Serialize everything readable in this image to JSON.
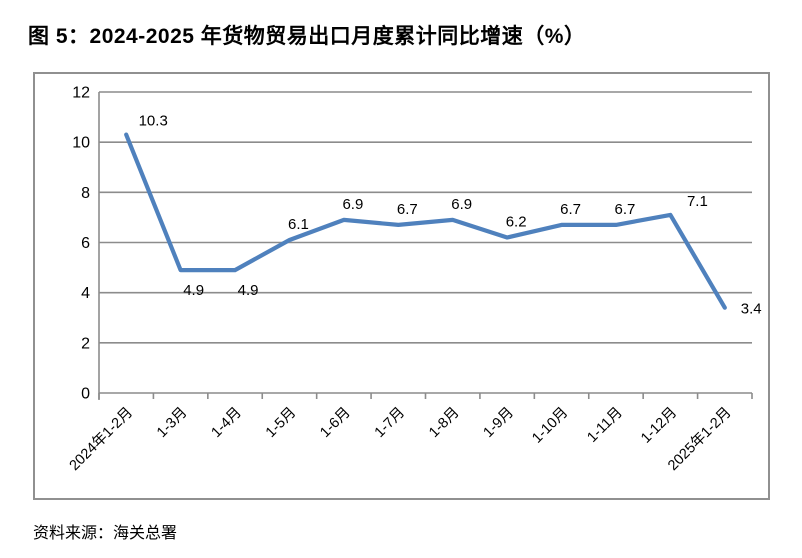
{
  "title": "图 5：2024-2025 年货物贸易出口月度累计同比增速（%）",
  "source": "资料来源：海关总署",
  "chart_data": {
    "type": "line",
    "title": "图 5：2024-2025 年货物贸易出口月度累计同比增速（%）",
    "categories": [
      "2024年1-2月",
      "1-3月",
      "1-4月",
      "1-5月",
      "1-6月",
      "1-7月",
      "1-8月",
      "1-9月",
      "1-10月",
      "1-11月",
      "1-12月",
      "2025年1-2月"
    ],
    "values": [
      10.3,
      4.9,
      4.9,
      6.1,
      6.9,
      6.7,
      6.9,
      6.2,
      6.7,
      6.7,
      7.1,
      3.4
    ],
    "data_labels": [
      "10.3",
      "4.9",
      "4.9",
      "6.1",
      "6.9",
      "6.7",
      "6.9",
      "6.2",
      "6.7",
      "6.7",
      "7.1",
      "3.4"
    ],
    "label_positions": [
      "above-right",
      "below",
      "below",
      "above",
      "above",
      "above",
      "above",
      "above",
      "above",
      "above",
      "above-right",
      "right"
    ],
    "xlabel": "",
    "ylabel": "",
    "ylim": [
      0,
      12
    ],
    "yticks": [
      0,
      2,
      4,
      6,
      8,
      10,
      12
    ],
    "x_label_rotation_deg": -45,
    "grid": true,
    "legend": false,
    "line_color": "#4F81BD",
    "grid_color": "#8C8C8C",
    "axis_color": "#8C8C8C",
    "border_color": "#909090",
    "text_color": "#000000",
    "source_note": "资料来源：海关总署"
  }
}
